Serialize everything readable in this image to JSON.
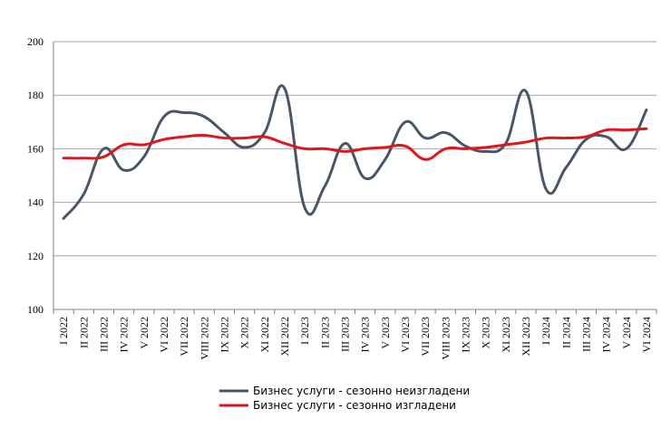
{
  "chart_data": {
    "type": "line",
    "title": "",
    "xlabel": "",
    "ylabel": "",
    "ylim": [
      100,
      200
    ],
    "yticks": [
      100,
      120,
      140,
      160,
      180,
      200
    ],
    "grid": true,
    "legend_position": "bottom",
    "categories": [
      "I 2022",
      "II 2022",
      "III 2022",
      "IV 2022",
      "V 2022",
      "VI 2022",
      "VII 2022",
      "VIII 2022",
      "IX 2022",
      "X 2022",
      "XI 2022",
      "XII 2022",
      "I 2023",
      "II 2023",
      "III 2023",
      "IV 2023",
      "V 2023",
      "VI 2023",
      "VII 2023",
      "VIII 2023",
      "IX 2023",
      "X 2023",
      "XI 2023",
      "XII 2023",
      "I 2024",
      "II 2024",
      "III 2024",
      "IV 2024",
      "V 2024",
      "VI 2024"
    ],
    "series": [
      {
        "name": "Бизнес услуги  - сезонно неизгладени",
        "color": "#4a5568",
        "values": [
          134,
          143,
          160,
          152,
          157,
          172,
          173.5,
          172,
          166,
          160.5,
          166,
          182.5,
          138,
          146,
          162,
          149,
          156,
          170,
          164,
          166,
          161,
          159,
          162,
          181.5,
          145,
          153,
          163.5,
          164.5,
          160,
          174.5
        ]
      },
      {
        "name": "Бизнес услуги  - сезонно изгладени",
        "color": "#e0161c",
        "values": [
          156.5,
          156.5,
          157,
          161.5,
          161.5,
          163.5,
          164.5,
          165,
          164,
          164,
          164.5,
          162,
          160,
          160,
          159,
          160,
          160.5,
          161,
          156,
          160,
          160,
          160.5,
          161.5,
          162.5,
          164,
          164,
          164.5,
          167,
          167,
          167.5
        ]
      }
    ]
  }
}
